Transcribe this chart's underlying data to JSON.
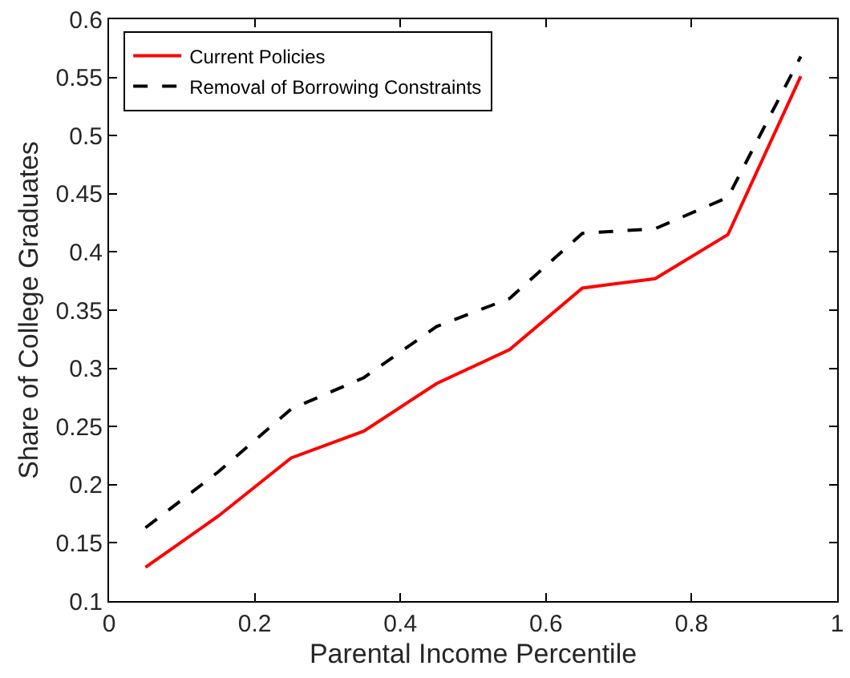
{
  "chart_data": {
    "type": "line",
    "xlabel": "Parental Income Percentile",
    "ylabel": "Share of College Graduates",
    "x": [
      0.05,
      0.15,
      0.25,
      0.35,
      0.45,
      0.55,
      0.65,
      0.75,
      0.85,
      0.95
    ],
    "series": [
      {
        "name": "Current Policies",
        "color": "#ff0000",
        "line_style": "solid",
        "values": [
          0.129,
          0.173,
          0.223,
          0.246,
          0.287,
          0.316,
          0.369,
          0.377,
          0.415,
          0.551
        ]
      },
      {
        "name": "Removal of Borrowing Constraints",
        "color": "#000000",
        "line_style": "dashed",
        "values": [
          0.163,
          0.211,
          0.265,
          0.292,
          0.336,
          0.36,
          0.416,
          0.42,
          0.447,
          0.568
        ]
      }
    ],
    "xlim": [
      0,
      1
    ],
    "xticks": [
      0,
      0.2,
      0.4,
      0.6,
      0.8,
      1
    ],
    "ylim": [
      0.1,
      0.6
    ],
    "yticks": [
      0.1,
      0.15,
      0.2,
      0.25,
      0.3,
      0.35,
      0.4,
      0.45,
      0.5,
      0.55,
      0.6
    ],
    "legend": "top left",
    "marker": "none"
  }
}
